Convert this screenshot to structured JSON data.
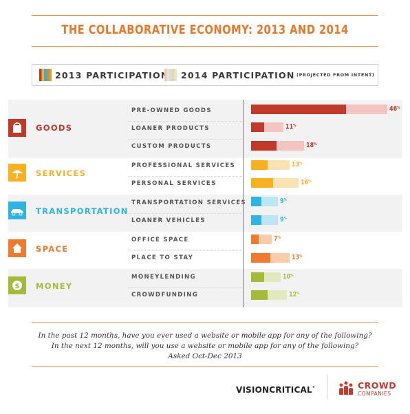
{
  "colors": {
    "goods": [
      "#c0392b",
      "#f4c4c2"
    ],
    "services": [
      "#f7b123",
      "#fbe2b2"
    ],
    "transportation": [
      "#2fb3e2",
      "#bde6f5"
    ],
    "space": [
      "#f07a2f",
      "#f9cda9"
    ],
    "money": [
      "#a6b93b",
      "#e3e9bf"
    ],
    "accent": "#e8782b"
  },
  "icons": {
    "goods": "shopping-bag-icon",
    "services": "umbrella-icon",
    "transportation": "car-icon",
    "space": "house-icon",
    "money": "coin-icon"
  },
  "chart_data": {
    "type": "bar",
    "orientation": "horizontal",
    "title": "THE COLLABORATIVE ECONOMY: 2013 AND 2014",
    "legend": [
      {
        "label": "2013 PARTICIPATION"
      },
      {
        "label": "2014 PARTICIPATION",
        "note": "(PROJECTED FROM INTENT)"
      }
    ],
    "xlim": [
      0,
      46
    ],
    "groups": [
      {
        "key": "goods",
        "label": "GOODS",
        "items": [
          {
            "label": "PRE-OWNED GOODS",
            "v2013": 32,
            "v2014": 46,
            "pct_label": "46"
          },
          {
            "label": "LOANER PRODUCTS",
            "v2013": 4.5,
            "v2014": 11,
            "pct_label": "11"
          },
          {
            "label": "CUSTOM PRODUCTS",
            "v2013": 8.5,
            "v2014": 18,
            "pct_label": "18"
          }
        ]
      },
      {
        "key": "services",
        "label": "SERVICES",
        "items": [
          {
            "label": "PROFESSIONAL SERVICES",
            "v2013": 5.5,
            "v2014": 13,
            "pct_label": "13"
          },
          {
            "label": "PERSONAL SERVICES",
            "v2013": 7.5,
            "v2014": 16,
            "pct_label": "16"
          }
        ]
      },
      {
        "key": "transportation",
        "label": "TRANSPORTATION",
        "items": [
          {
            "label": "TRANSPORTATION SERVICES",
            "v2013": 3.5,
            "v2014": 9,
            "pct_label": "9"
          },
          {
            "label": "LOANER VEHICLES",
            "v2013": 3.5,
            "v2014": 9,
            "pct_label": "9"
          }
        ]
      },
      {
        "key": "space",
        "label": "SPACE",
        "items": [
          {
            "label": "OFFICE SPACE",
            "v2013": 2.5,
            "v2014": 7,
            "pct_label": "7"
          },
          {
            "label": "PLACE TO STAY",
            "v2013": 6.5,
            "v2014": 13,
            "pct_label": "13"
          }
        ]
      },
      {
        "key": "money",
        "label": "MONEY",
        "items": [
          {
            "label": "MONEYLENDING",
            "v2013": 4.5,
            "v2014": 10,
            "pct_label": "10"
          },
          {
            "label": "CROWDFUNDING",
            "v2013": 5.5,
            "v2014": 12,
            "pct_label": "12"
          }
        ]
      }
    ]
  },
  "pct_suffix": "%",
  "footer": {
    "q1": "In the past 12 months, have you ever used a website or mobile app for any of the following?",
    "q2": "In the next 12 months, will you use a website or mobile app for any of the following?",
    "q3": "Asked Oct-Dec 2013"
  },
  "logos": {
    "visioncritical": "VISIONCRITICAL",
    "visioncritical_mark": "°",
    "crowd": "CROWD",
    "companies": "COMPANIES"
  }
}
